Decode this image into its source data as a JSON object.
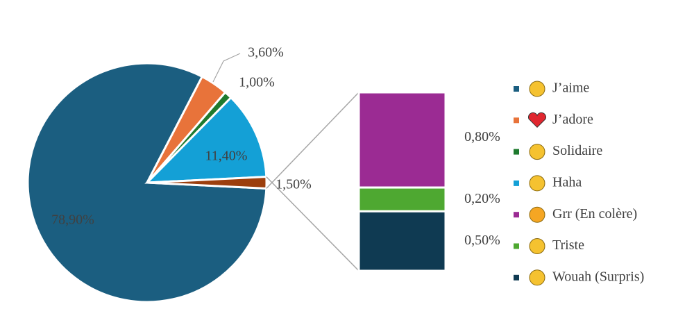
{
  "chart_data": {
    "type": "bar-of-pie",
    "pie": {
      "categories": [
        "J’aime",
        "J’adore",
        "Solidaire",
        "Haha",
        null
      ],
      "values": [
        78.9,
        3.6,
        1.0,
        11.4,
        1.5
      ],
      "value_labels": [
        "78,90%",
        "3,60%",
        "1,00%",
        "11,40%",
        "1,50%"
      ],
      "colors": [
        "#1b5e80",
        "#e8733a",
        "#1e7a2e",
        "#14a0d6",
        "#9c3f0e"
      ]
    },
    "bar": {
      "categories": [
        "Grr (En colère)",
        "Triste",
        "Wouah (Surpris)"
      ],
      "values": [
        0.8,
        0.2,
        0.5
      ],
      "value_labels": [
        "0,80%",
        "0,20%",
        "0,50%"
      ],
      "colors": [
        "#9b2b93",
        "#4ea831",
        "#0f3a52"
      ]
    }
  }
}
